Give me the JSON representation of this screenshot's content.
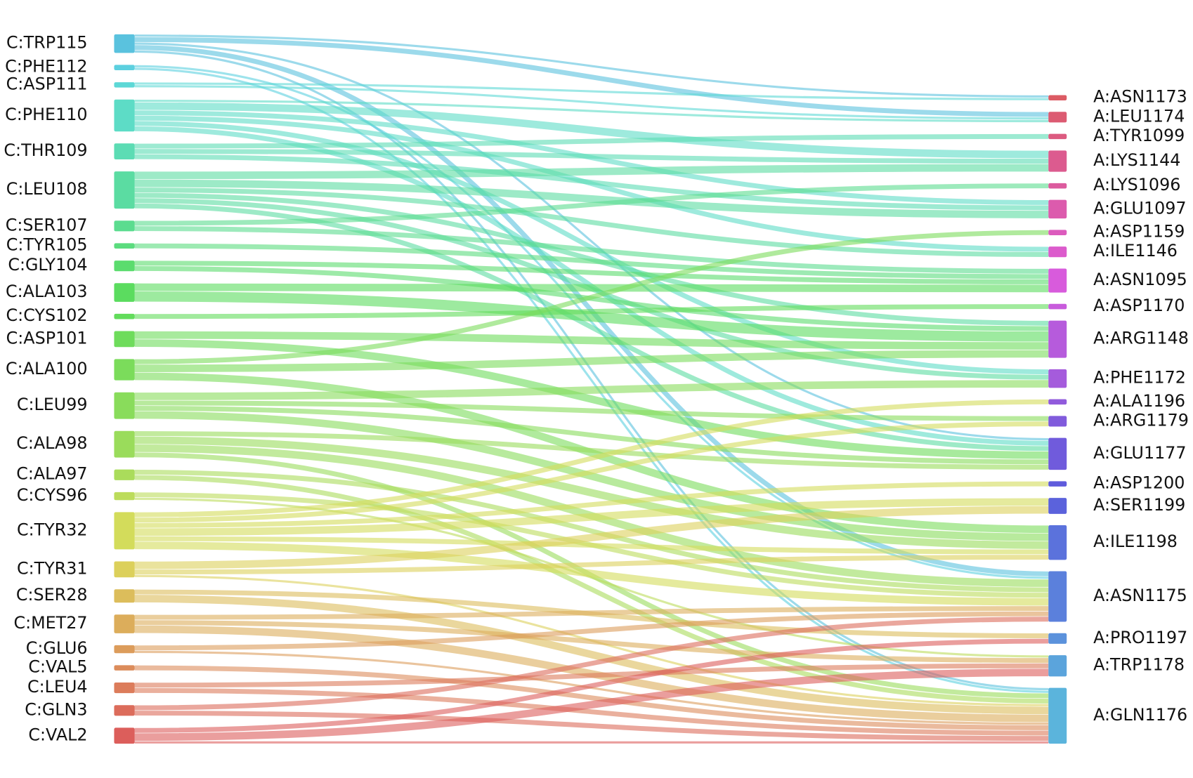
{
  "chart_data": {
    "type": "sankey",
    "left_nodes": [
      {
        "name": "C:TRP115",
        "color": "#5ac2de"
      },
      {
        "name": "C:PHE112",
        "color": "#5cd0df"
      },
      {
        "name": "C:ASP111",
        "color": "#5dd8d6"
      },
      {
        "name": "C:PHE110",
        "color": "#5ddcc6"
      },
      {
        "name": "C:THR109",
        "color": "#5cdcb4"
      },
      {
        "name": "C:LEU108",
        "color": "#5bdca2"
      },
      {
        "name": "C:SER107",
        "color": "#5bdc8f"
      },
      {
        "name": "C:TYR105",
        "color": "#5bdc7e"
      },
      {
        "name": "C:GLY104",
        "color": "#5bdc6e"
      },
      {
        "name": "C:ALA103",
        "color": "#5bdc5f"
      },
      {
        "name": "C:CYS102",
        "color": "#62dc5b"
      },
      {
        "name": "C:ASP101",
        "color": "#6edc5b"
      },
      {
        "name": "C:ALA100",
        "color": "#7bdc5b"
      },
      {
        "name": "C:LEU99",
        "color": "#89dc5b"
      },
      {
        "name": "C:ALA98",
        "color": "#9adc5b"
      },
      {
        "name": "C:ALA97",
        "color": "#aadc5b"
      },
      {
        "name": "C:CYS96",
        "color": "#bcdc5b"
      },
      {
        "name": "C:TYR32",
        "color": "#d3dc5b"
      },
      {
        "name": "C:TYR31",
        "color": "#dcd05b"
      },
      {
        "name": "C:SER28",
        "color": "#dcbd5b"
      },
      {
        "name": "C:MET27",
        "color": "#dcad5b"
      },
      {
        "name": "C:GLU6",
        "color": "#dc9c5b"
      },
      {
        "name": "C:VAL5",
        "color": "#dc8c5b"
      },
      {
        "name": "C:LEU4",
        "color": "#dc7c5b"
      },
      {
        "name": "C:GLN3",
        "color": "#dc6c5b"
      },
      {
        "name": "C:VAL2",
        "color": "#dc5e5b"
      }
    ],
    "right_nodes": [
      {
        "name": "A:ASN1173",
        "color": "#dc5b64"
      },
      {
        "name": "A:LEU1174",
        "color": "#dc5b72"
      },
      {
        "name": "A:TYR1099",
        "color": "#dc5b80"
      },
      {
        "name": "A:LYS1144",
        "color": "#dc5b8f"
      },
      {
        "name": "A:LYS1096",
        "color": "#dc5b9e"
      },
      {
        "name": "A:GLU1097",
        "color": "#dc5bad"
      },
      {
        "name": "A:ASP1159",
        "color": "#dc5bbd"
      },
      {
        "name": "A:ILE1146",
        "color": "#dc5bcc"
      },
      {
        "name": "A:ASN1095",
        "color": "#d85bdc"
      },
      {
        "name": "A:ASP1170",
        "color": "#c85bdc"
      },
      {
        "name": "A:ARG1148",
        "color": "#b65bdc"
      },
      {
        "name": "A:PHE1172",
        "color": "#a55bdc"
      },
      {
        "name": "A:ALA1196",
        "color": "#915bdc"
      },
      {
        "name": "A:ARG1179",
        "color": "#805bdc"
      },
      {
        "name": "A:GLU1177",
        "color": "#705bdc"
      },
      {
        "name": "A:ASP1200",
        "color": "#5f5bdc"
      },
      {
        "name": "A:SER1199",
        "color": "#5b62dc"
      },
      {
        "name": "A:ILE1198",
        "color": "#5b72dc"
      },
      {
        "name": "A:ASN1175",
        "color": "#5b80dc"
      },
      {
        "name": "A:PRO1197",
        "color": "#5b92dc"
      },
      {
        "name": "A:TRP1178",
        "color": "#5ba4dc"
      },
      {
        "name": "A:GLN1176",
        "color": "#5bb4dc"
      }
    ],
    "links": [
      {
        "source": "C:TRP115",
        "target": "A:ASN1173",
        "value": 1
      },
      {
        "source": "C:TRP115",
        "target": "A:LEU1174",
        "value": 2
      },
      {
        "source": "C:TRP115",
        "target": "A:GLU1177",
        "value": 1
      },
      {
        "source": "C:TRP115",
        "target": "A:ASN1175",
        "value": 2
      },
      {
        "source": "C:TRP115",
        "target": "A:GLN1176",
        "value": 1
      },
      {
        "source": "C:PHE112",
        "target": "A:ASN1175",
        "value": 1
      },
      {
        "source": "C:PHE112",
        "target": "A:GLN1176",
        "value": 1
      },
      {
        "source": "C:ASP111",
        "target": "A:ASN1173",
        "value": 1
      },
      {
        "source": "C:ASP111",
        "target": "A:LEU1174",
        "value": 1
      },
      {
        "source": "C:PHE110",
        "target": "A:LEU1174",
        "value": 1
      },
      {
        "source": "C:PHE110",
        "target": "A:LYS1144",
        "value": 3
      },
      {
        "source": "C:PHE110",
        "target": "A:GLU1097",
        "value": 2
      },
      {
        "source": "C:PHE110",
        "target": "A:ILE1146",
        "value": 2
      },
      {
        "source": "C:PHE110",
        "target": "A:PHE1172",
        "value": 2
      },
      {
        "source": "C:PHE110",
        "target": "A:GLU1177",
        "value": 2
      },
      {
        "source": "C:THR109",
        "target": "A:TYR1099",
        "value": 2
      },
      {
        "source": "C:THR109",
        "target": "A:LYS1144",
        "value": 2
      },
      {
        "source": "C:THR109",
        "target": "A:GLU1097",
        "value": 2
      },
      {
        "source": "C:LEU108",
        "target": "A:LYS1144",
        "value": 3
      },
      {
        "source": "C:LEU108",
        "target": "A:GLU1097",
        "value": 3
      },
      {
        "source": "C:LEU108",
        "target": "A:ILE1146",
        "value": 2
      },
      {
        "source": "C:LEU108",
        "target": "A:ARG1148",
        "value": 2
      },
      {
        "source": "C:LEU108",
        "target": "A:PHE1172",
        "value": 2
      },
      {
        "source": "C:LEU108",
        "target": "A:GLU1177",
        "value": 2
      },
      {
        "source": "C:SER107",
        "target": "A:LYS1096",
        "value": 2
      },
      {
        "source": "C:SER107",
        "target": "A:ASN1095",
        "value": 2
      },
      {
        "source": "C:TYR105",
        "target": "A:ASN1095",
        "value": 2
      },
      {
        "source": "C:GLY104",
        "target": "A:ASN1095",
        "value": 2
      },
      {
        "source": "C:GLY104",
        "target": "A:ARG1148",
        "value": 2
      },
      {
        "source": "C:ALA103",
        "target": "A:ASN1095",
        "value": 3
      },
      {
        "source": "C:ALA103",
        "target": "A:ARG1148",
        "value": 4
      },
      {
        "source": "C:CYS102",
        "target": "A:ASP1170",
        "value": 2
      },
      {
        "source": "C:ASP101",
        "target": "A:ARG1148",
        "value": 3
      },
      {
        "source": "C:ASP101",
        "target": "A:GLU1177",
        "value": 3
      },
      {
        "source": "C:ALA100",
        "target": "A:ASP1159",
        "value": 2
      },
      {
        "source": "C:ALA100",
        "target": "A:ARG1148",
        "value": 3
      },
      {
        "source": "C:ALA100",
        "target": "A:ILE1198",
        "value": 3
      },
      {
        "source": "C:LEU99",
        "target": "A:PHE1172",
        "value": 3
      },
      {
        "source": "C:LEU99",
        "target": "A:ARG1179",
        "value": 2
      },
      {
        "source": "C:LEU99",
        "target": "A:GLU1177",
        "value": 2
      },
      {
        "source": "C:LEU99",
        "target": "A:ILE1198",
        "value": 3
      },
      {
        "source": "C:ALA98",
        "target": "A:GLU1177",
        "value": 2
      },
      {
        "source": "C:ALA98",
        "target": "A:ILE1198",
        "value": 3
      },
      {
        "source": "C:ALA98",
        "target": "A:ASN1175",
        "value": 3
      },
      {
        "source": "C:ALA98",
        "target": "A:GLN1176",
        "value": 2
      },
      {
        "source": "C:ALA97",
        "target": "A:ASN1175",
        "value": 2
      },
      {
        "source": "C:ALA97",
        "target": "A:GLN1176",
        "value": 2
      },
      {
        "source": "C:CYS96",
        "target": "A:ASN1175",
        "value": 2
      },
      {
        "source": "C:CYS96",
        "target": "A:TRP1178",
        "value": 1
      },
      {
        "source": "C:TYR32",
        "target": "A:ALA1196",
        "value": 2
      },
      {
        "source": "C:TYR32",
        "target": "A:ARG1179",
        "value": 2
      },
      {
        "source": "C:TYR32",
        "target": "A:ASP1200",
        "value": 2
      },
      {
        "source": "C:TYR32",
        "target": "A:SER1199",
        "value": 3
      },
      {
        "source": "C:TYR32",
        "target": "A:ILE1198",
        "value": 2
      },
      {
        "source": "C:TYR32",
        "target": "A:ASN1175",
        "value": 3
      },
      {
        "source": "C:TYR31",
        "target": "A:SER1199",
        "value": 3
      },
      {
        "source": "C:TYR31",
        "target": "A:ILE1198",
        "value": 2
      },
      {
        "source": "C:TYR31",
        "target": "A:GLN1176",
        "value": 1
      },
      {
        "source": "C:SER28",
        "target": "A:PRO1197",
        "value": 2
      },
      {
        "source": "C:SER28",
        "target": "A:GLN1176",
        "value": 3
      },
      {
        "source": "C:MET27",
        "target": "A:ASN1175",
        "value": 2
      },
      {
        "source": "C:MET27",
        "target": "A:TRP1178",
        "value": 2
      },
      {
        "source": "C:MET27",
        "target": "A:GLN1176",
        "value": 3
      },
      {
        "source": "C:GLU6",
        "target": "A:ASN1175",
        "value": 2
      },
      {
        "source": "C:GLU6",
        "target": "A:GLN1176",
        "value": 1
      },
      {
        "source": "C:VAL5",
        "target": "A:GLN1176",
        "value": 2
      },
      {
        "source": "C:LEU4",
        "target": "A:TRP1178",
        "value": 2
      },
      {
        "source": "C:LEU4",
        "target": "A:GLN1176",
        "value": 2
      },
      {
        "source": "C:GLN3",
        "target": "A:ASN1175",
        "value": 2
      },
      {
        "source": "C:GLN3",
        "target": "A:GLN1176",
        "value": 2
      },
      {
        "source": "C:VAL2",
        "target": "A:PRO1197",
        "value": 2
      },
      {
        "source": "C:VAL2",
        "target": "A:TRP1178",
        "value": 3
      },
      {
        "source": "C:VAL2",
        "target": "A:GLN1176",
        "value": 1
      }
    ]
  }
}
